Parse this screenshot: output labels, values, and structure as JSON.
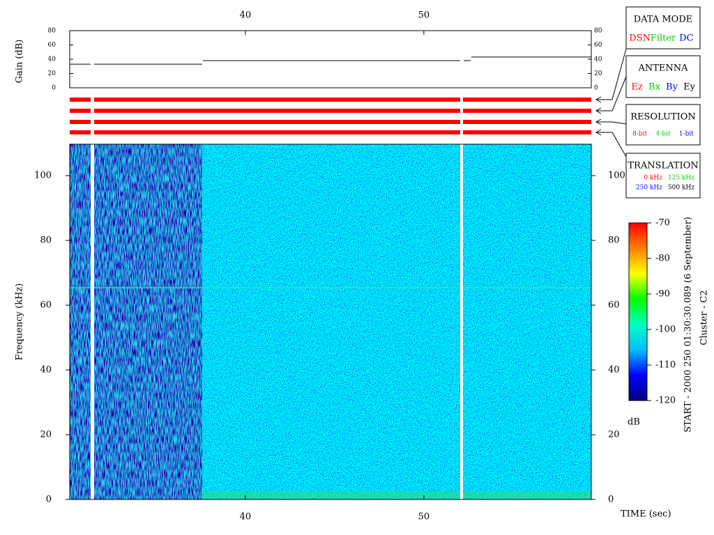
{
  "chart_data": [
    {
      "type": "line",
      "y_label": "Gain (dB)",
      "x": [
        30.16,
        31.33,
        31.4,
        31.52,
        37.58,
        37.6,
        37.62,
        52.03,
        52.1,
        52.23,
        52.62,
        52.64,
        52.66,
        59.38
      ],
      "series": [
        {
          "color": "#000000",
          "values": [
            33,
            33,
            null,
            33,
            33,
            null,
            38,
            38,
            null,
            38,
            38,
            null,
            43,
            43
          ]
        }
      ],
      "xlim": [
        30.16,
        59.38
      ],
      "xticks": [
        40,
        50
      ],
      "ylim": [
        0,
        80
      ],
      "yticks": [
        0,
        20,
        40,
        60,
        80
      ]
    },
    {
      "type": "heatmap",
      "x_label": "TIME (sec)",
      "y_label": "Frequency (kHz)",
      "xlim": [
        30.16,
        59.38
      ],
      "xticks": [
        40,
        50
      ],
      "ylim": [
        0,
        109.7
      ],
      "yticks": [
        0,
        20,
        40,
        60,
        80,
        100
      ]
    },
    {
      "type": "colorbar",
      "label": "dB",
      "ylim": [
        -120,
        -70
      ],
      "yticks": [
        -120,
        -110,
        -100,
        -90,
        -80,
        -70
      ],
      "colormap": [
        "#000080",
        "#0000ff",
        "#00c0ff",
        "#00ffc0",
        "#00ff00",
        "#ffff00",
        "#ff8000",
        "#ff0000"
      ]
    }
  ],
  "legend_boxes": [
    {
      "title": "DATA MODE",
      "items": [
        {
          "text": "DSN",
          "color": "#ff0000"
        },
        {
          "text": "Filter",
          "color": "#00cc00"
        },
        {
          "text": "DC",
          "color": "#0000ff"
        }
      ]
    },
    {
      "title": "ANTENNA",
      "items": [
        {
          "text": "Ez",
          "color": "#ff0000"
        },
        {
          "text": "Bx",
          "color": "#00cc00"
        },
        {
          "text": "By",
          "color": "#0000ff"
        },
        {
          "text": "Ey",
          "color": "#000000"
        }
      ]
    },
    {
      "title": "RESOLUTION",
      "items": [
        {
          "text": "8-bit",
          "color": "#ff0000"
        },
        {
          "text": "4-bit",
          "color": "#00cc00"
        },
        {
          "text": "1-bit",
          "color": "#0000ff"
        }
      ]
    },
    {
      "title": "TRANSLATION",
      "items": [
        {
          "text": "0 kHz",
          "color": "#ff0000"
        },
        {
          "text": "125 kHz",
          "color": "#00cc00"
        },
        {
          "text": "250 kHz",
          "color": "#0000ff"
        },
        {
          "text": "500 kHz",
          "color": "#000000"
        }
      ]
    }
  ],
  "side_text": [
    "START - 2000 250 01:30:30.089 (6 September)",
    "Cluster - C2"
  ]
}
